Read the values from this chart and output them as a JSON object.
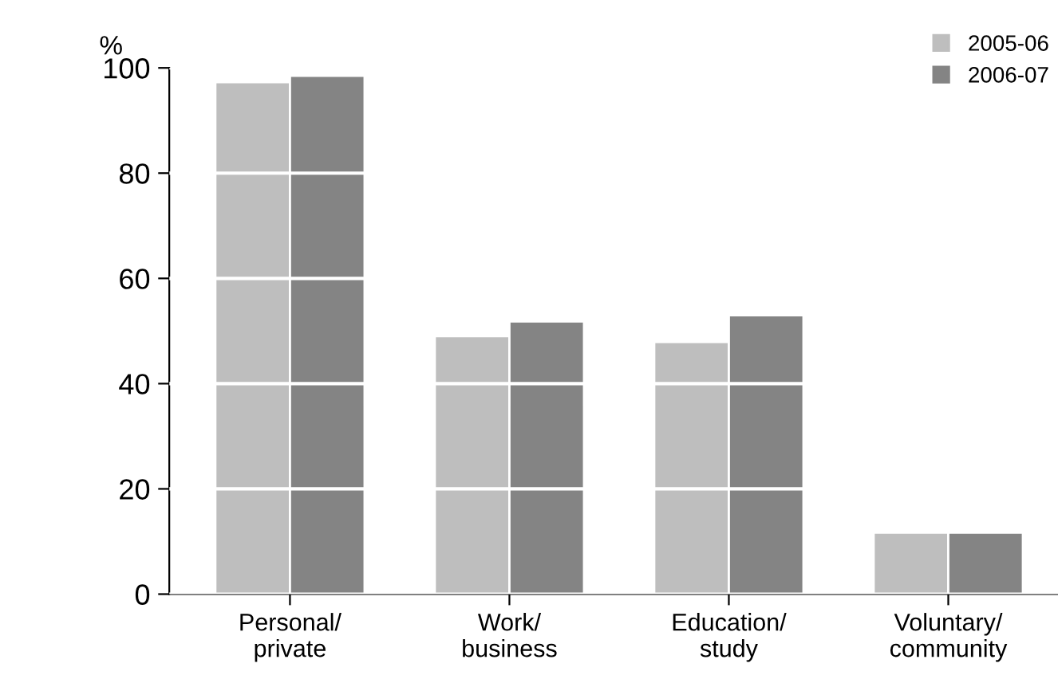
{
  "chart_data": {
    "type": "bar",
    "ylabel": "%",
    "categories": [
      "Personal/\nprivate",
      "Work/\nbusiness",
      "Education/\nstudy",
      "Voluntary/\ncommunity"
    ],
    "series": [
      {
        "name": "2005-06",
        "color": "#bebebe",
        "values": [
          97.3,
          49.0,
          47.9,
          11.7
        ]
      },
      {
        "name": "2006-07",
        "color": "#848484",
        "values": [
          98.5,
          51.8,
          53.0,
          11.7
        ]
      }
    ],
    "ylim": [
      0,
      100
    ],
    "yticks": [
      0,
      20,
      40,
      60,
      80,
      100
    ],
    "grid": "y",
    "legend": "top right"
  }
}
